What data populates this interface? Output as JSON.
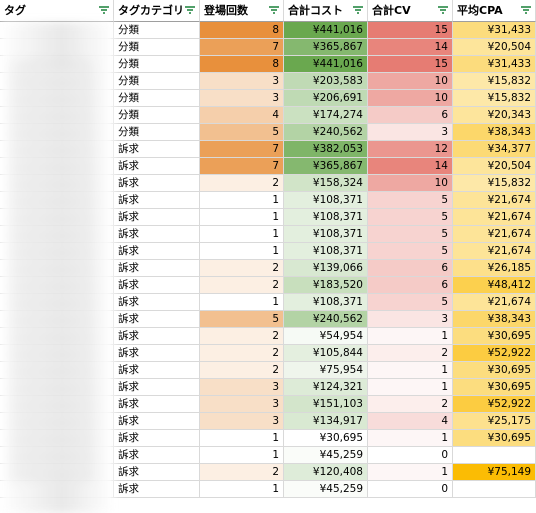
{
  "headers": [
    "タグ",
    "タグカテゴリ",
    "登場回数",
    "合計コスト",
    "合計CV",
    "平均CPA"
  ],
  "colors": {
    "count_max": "#e8903c",
    "count_min": "#ffffff",
    "cost_max": "#6aa84f",
    "cost_min": "#ffffff",
    "cv_max": "#e67c73",
    "cv_min": "#ffffff",
    "cpa_max": "#fbbc04",
    "cpa_min": "#fde8a8"
  },
  "rows": [
    {
      "category": "分類",
      "count": "8",
      "cost": "¥441,016",
      "cv": "15",
      "cpa": "¥31,433"
    },
    {
      "category": "分類",
      "count": "7",
      "cost": "¥365,867",
      "cv": "14",
      "cpa": "¥20,504"
    },
    {
      "category": "分類",
      "count": "8",
      "cost": "¥441,016",
      "cv": "15",
      "cpa": "¥31,433"
    },
    {
      "category": "分類",
      "count": "3",
      "cost": "¥203,583",
      "cv": "10",
      "cpa": "¥15,832"
    },
    {
      "category": "分類",
      "count": "3",
      "cost": "¥206,691",
      "cv": "10",
      "cpa": "¥15,832"
    },
    {
      "category": "分類",
      "count": "4",
      "cost": "¥174,274",
      "cv": "6",
      "cpa": "¥20,343"
    },
    {
      "category": "分類",
      "count": "5",
      "cost": "¥240,562",
      "cv": "3",
      "cpa": "¥38,343"
    },
    {
      "category": "訴求",
      "count": "7",
      "cost": "¥382,053",
      "cv": "12",
      "cpa": "¥34,377"
    },
    {
      "category": "訴求",
      "count": "7",
      "cost": "¥365,867",
      "cv": "14",
      "cpa": "¥20,504"
    },
    {
      "category": "訴求",
      "count": "2",
      "cost": "¥158,324",
      "cv": "10",
      "cpa": "¥15,832"
    },
    {
      "category": "訴求",
      "count": "1",
      "cost": "¥108,371",
      "cv": "5",
      "cpa": "¥21,674"
    },
    {
      "category": "訴求",
      "count": "1",
      "cost": "¥108,371",
      "cv": "5",
      "cpa": "¥21,674"
    },
    {
      "category": "訴求",
      "count": "1",
      "cost": "¥108,371",
      "cv": "5",
      "cpa": "¥21,674"
    },
    {
      "category": "訴求",
      "count": "1",
      "cost": "¥108,371",
      "cv": "5",
      "cpa": "¥21,674"
    },
    {
      "category": "訴求",
      "count": "2",
      "cost": "¥139,066",
      "cv": "6",
      "cpa": "¥26,185"
    },
    {
      "category": "訴求",
      "count": "2",
      "cost": "¥183,520",
      "cv": "6",
      "cpa": "¥48,412"
    },
    {
      "category": "訴求",
      "count": "1",
      "cost": "¥108,371",
      "cv": "5",
      "cpa": "¥21,674"
    },
    {
      "category": "訴求",
      "count": "5",
      "cost": "¥240,562",
      "cv": "3",
      "cpa": "¥38,343"
    },
    {
      "category": "訴求",
      "count": "2",
      "cost": "¥54,954",
      "cv": "1",
      "cpa": "¥30,695"
    },
    {
      "category": "訴求",
      "count": "2",
      "cost": "¥105,844",
      "cv": "2",
      "cpa": "¥52,922"
    },
    {
      "category": "訴求",
      "count": "2",
      "cost": "¥75,954",
      "cv": "1",
      "cpa": "¥30,695"
    },
    {
      "category": "訴求",
      "count": "3",
      "cost": "¥124,321",
      "cv": "1",
      "cpa": "¥30,695"
    },
    {
      "category": "訴求",
      "count": "3",
      "cost": "¥151,103",
      "cv": "2",
      "cpa": "¥52,922"
    },
    {
      "category": "訴求",
      "count": "3",
      "cost": "¥134,917",
      "cv": "4",
      "cpa": "¥25,175"
    },
    {
      "category": "訴求",
      "count": "1",
      "cost": "¥30,695",
      "cv": "1",
      "cpa": "¥30,695"
    },
    {
      "category": "訴求",
      "count": "1",
      "cost": "¥45,259",
      "cv": "0",
      "cpa": ""
    },
    {
      "category": "訴求",
      "count": "2",
      "cost": "¥120,408",
      "cv": "1",
      "cpa": "¥75,149"
    },
    {
      "category": "訴求",
      "count": "1",
      "cost": "¥45,259",
      "cv": "0",
      "cpa": ""
    }
  ]
}
